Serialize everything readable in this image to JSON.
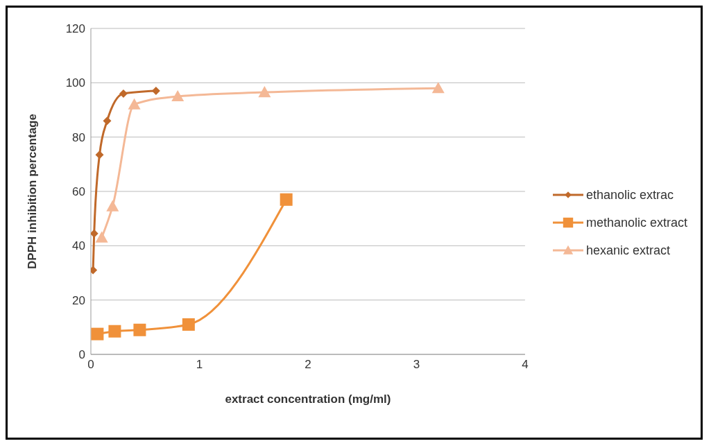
{
  "chart_data": {
    "type": "line",
    "xlabel": "extract concentration (mg/ml)",
    "ylabel": "DPPH inhibition percentage",
    "xlim": [
      0,
      4
    ],
    "xticks": [
      0,
      1,
      2,
      3,
      4
    ],
    "ylim": [
      0,
      120
    ],
    "yticks": [
      0,
      20,
      40,
      60,
      80,
      100,
      120
    ],
    "grid": "y",
    "legend": "right",
    "series": [
      {
        "name": "ethanolic extrac",
        "color": "#c0692a",
        "marker": "diamond",
        "x": [
          0.02,
          0.03,
          0.08,
          0.15,
          0.3,
          0.6
        ],
        "values": [
          31,
          44.5,
          73.5,
          86,
          96,
          97
        ]
      },
      {
        "name": "methanolic extract",
        "color": "#f0913a",
        "marker": "square",
        "x": [
          0.06,
          0.22,
          0.45,
          0.9,
          1.8
        ],
        "values": [
          7.5,
          8.5,
          9,
          11,
          57
        ]
      },
      {
        "name": "hexanic extract",
        "color": "#f4b896",
        "marker": "triangle",
        "x": [
          0.1,
          0.2,
          0.4,
          0.8,
          1.6,
          3.2
        ],
        "values": [
          43,
          54.5,
          92,
          95,
          96.5,
          98
        ]
      }
    ]
  }
}
